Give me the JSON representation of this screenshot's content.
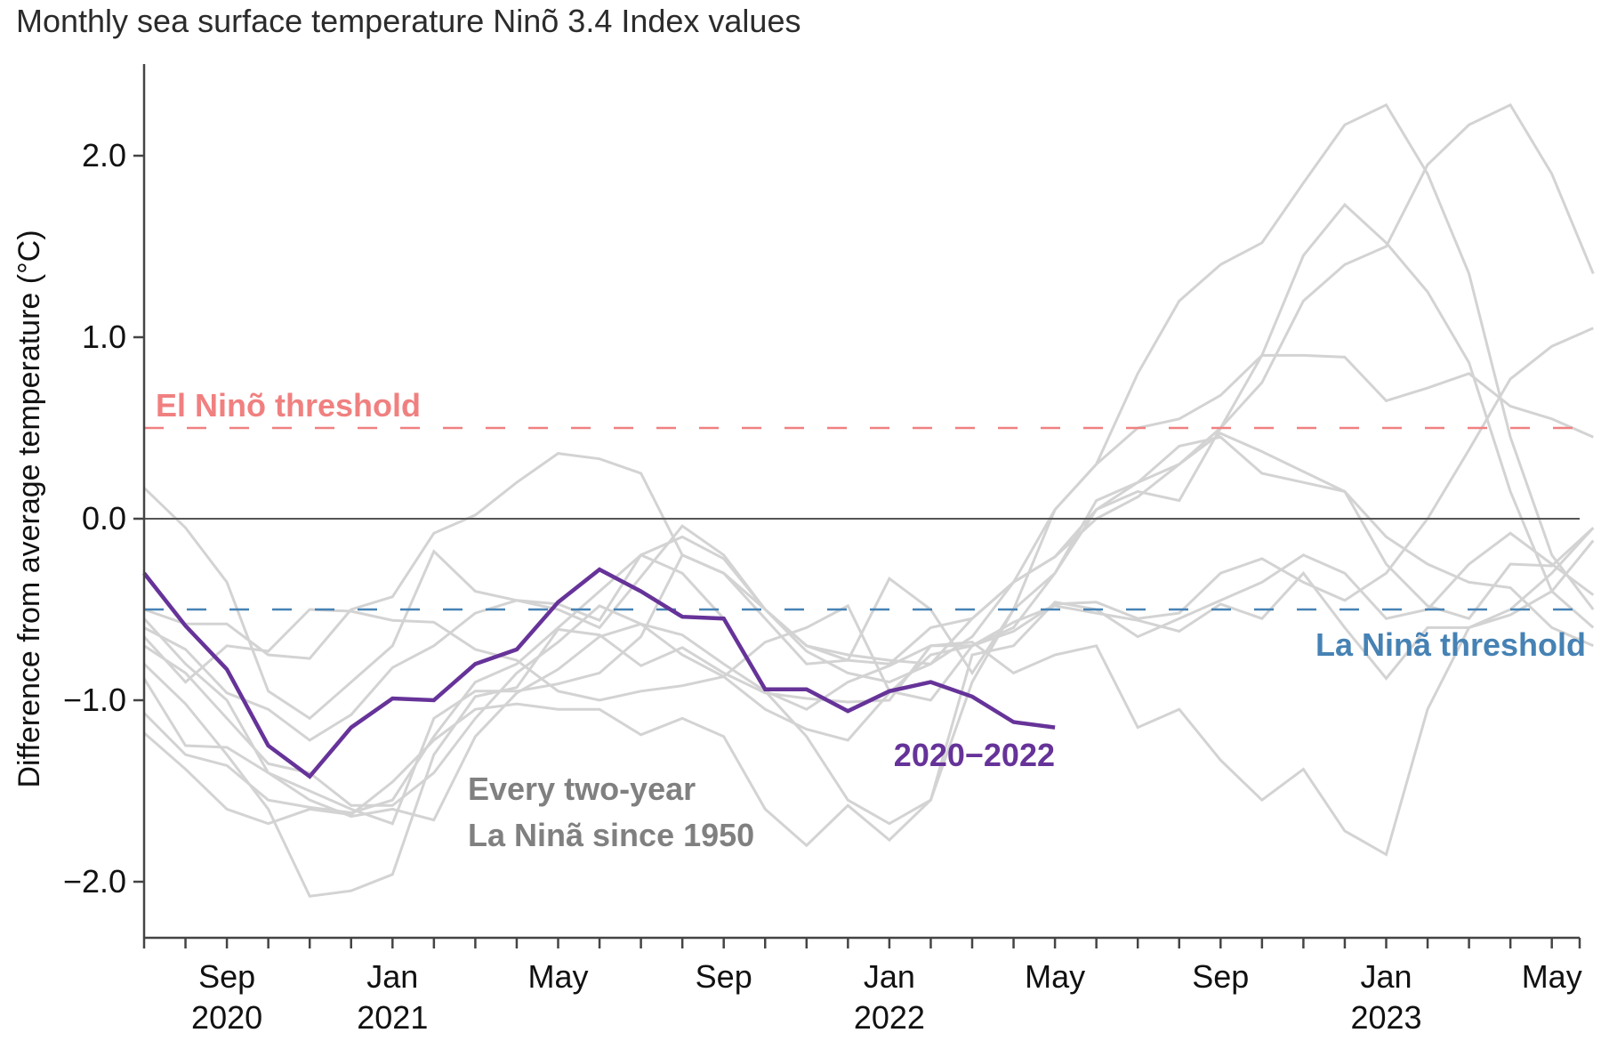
{
  "chart_data": {
    "type": "line",
    "title": "Monthly sea surface temperature Ninõ 3.4 Index values",
    "xlabel": "",
    "ylabel": "Difference from average temperature (°C)",
    "ylim": [
      -2.3,
      2.5
    ],
    "yticks": [
      2.0,
      1.0,
      0.0,
      -1.0,
      -2.0
    ],
    "ytick_labels": [
      "2.0",
      "1.0",
      "0.0",
      "−1.0",
      "−2.0"
    ],
    "x_months": [
      "Jul 2020",
      "Aug 2020",
      "Sep 2020",
      "Oct 2020",
      "Nov 2020",
      "Dec 2020",
      "Jan 2021",
      "Feb 2021",
      "Mar 2021",
      "Apr 2021",
      "May 2021",
      "Jun 2021",
      "Jul 2021",
      "Aug 2021",
      "Sep 2021",
      "Oct 2021",
      "Nov 2021",
      "Dec 2021",
      "Jan 2022",
      "Feb 2022",
      "Mar 2022",
      "Apr 2022",
      "May 2022",
      "Jun 2022",
      "Jul 2022",
      "Aug 2022",
      "Sep 2022",
      "Oct 2022",
      "Nov 2022",
      "Dec 2022",
      "Jan 2023",
      "Feb 2023",
      "Mar 2023",
      "Apr 2023",
      "May 2023",
      "Jun 2023"
    ],
    "xtick_labels": [
      {
        "month_index": 2,
        "line1": "Sep",
        "line2": "2020"
      },
      {
        "month_index": 6,
        "line1": "Jan",
        "line2": "2021"
      },
      {
        "month_index": 10,
        "line1": "May",
        "line2": ""
      },
      {
        "month_index": 14,
        "line1": "Sep",
        "line2": ""
      },
      {
        "month_index": 18,
        "line1": "Jan",
        "line2": "2022"
      },
      {
        "month_index": 22,
        "line1": "May",
        "line2": ""
      },
      {
        "month_index": 26,
        "line1": "Sep",
        "line2": ""
      },
      {
        "month_index": 30,
        "line1": "Jan",
        "line2": "2023"
      },
      {
        "month_index": 34,
        "line1": "May",
        "line2": ""
      }
    ],
    "thresholds": [
      {
        "name": "El Ninõ threshold",
        "value": 0.5,
        "color": "#f08080"
      },
      {
        "name": "La Ninã threshold",
        "value": -0.5,
        "color": "#4682b4"
      }
    ],
    "zero_line": 0.0,
    "highlight_series": {
      "name": "2020−2022",
      "color": "#663399",
      "values": [
        -0.3,
        -0.59,
        -0.83,
        -1.25,
        -1.42,
        -1.15,
        -0.99,
        -1.0,
        -0.8,
        -0.72,
        -0.46,
        -0.28,
        -0.4,
        -0.54,
        -0.55,
        -0.94,
        -0.94,
        -1.06,
        -0.95,
        -0.9,
        -0.98,
        -1.12,
        -1.15
      ]
    },
    "background_series": {
      "name": "Every two-year La Ninã since 1950",
      "color": "#d3d3d3",
      "series": [
        [
          0.17,
          -0.05,
          -0.35,
          -0.95,
          -1.1,
          -0.9,
          -0.7,
          -0.18,
          -0.4,
          -0.45,
          -0.47,
          -0.56,
          -0.2,
          -0.3,
          -0.55,
          -0.95,
          -1.2,
          -1.55,
          -1.68,
          -1.55,
          -0.75,
          -0.7,
          -0.46,
          -0.5,
          -0.65,
          -0.55,
          -0.45,
          -0.35,
          -0.2,
          -0.3,
          -0.55,
          -0.5,
          -0.25,
          -0.08,
          -0.25,
          -0.42
        ],
        [
          -0.5,
          -0.58,
          -0.58,
          -0.75,
          -0.77,
          -0.5,
          -0.43,
          -0.08,
          0.02,
          0.2,
          0.36,
          0.33,
          0.25,
          -0.2,
          -0.3,
          -0.55,
          -0.8,
          -0.78,
          -0.33,
          -0.5,
          -0.85,
          -0.5,
          -0.3,
          0.1,
          0.2,
          0.3,
          0.47,
          0.37,
          0.26,
          0.15,
          -0.25,
          -0.48,
          -0.55,
          -0.25,
          -0.26,
          -0.05
        ],
        [
          -0.6,
          -0.72,
          -0.96,
          -1.05,
          -1.22,
          -1.08,
          -0.82,
          -0.7,
          -0.52,
          -0.45,
          -0.5,
          -0.6,
          -0.32,
          -0.04,
          -0.2,
          -0.5,
          -0.7,
          -0.78,
          -0.8,
          -0.6,
          -0.55,
          -0.35,
          0.05,
          0.3,
          0.5,
          0.55,
          0.68,
          0.9,
          0.9,
          0.89,
          0.65,
          0.72,
          0.8,
          0.62,
          0.55,
          0.45
        ],
        [
          -0.65,
          -0.9,
          -0.7,
          -0.73,
          -0.5,
          -0.51,
          -0.56,
          -0.57,
          -0.72,
          -0.78,
          -0.95,
          -1.0,
          -0.95,
          -0.92,
          -0.87,
          -0.68,
          -0.6,
          -0.48,
          -0.95,
          -1.0,
          -0.7,
          -0.6,
          -0.3,
          0.05,
          0.15,
          0.1,
          0.5,
          0.9,
          1.45,
          1.73,
          1.52,
          1.25,
          0.86,
          0.15,
          -0.4,
          -0.6
        ],
        [
          -0.88,
          -1.25,
          -1.26,
          -1.4,
          -1.5,
          -1.6,
          -1.68,
          -1.1,
          -0.95,
          -0.95,
          -0.91,
          -0.85,
          -0.65,
          -0.2,
          -0.3,
          -0.5,
          -0.7,
          -0.75,
          -0.78,
          -0.8,
          -0.55,
          -0.35,
          -0.21,
          0.05,
          0.2,
          0.4,
          0.45,
          0.25,
          0.2,
          0.15,
          -0.1,
          -0.25,
          -0.35,
          -0.38,
          -0.6,
          -0.7
        ],
        [
          -1.07,
          -1.3,
          -1.36,
          -1.55,
          -1.59,
          -1.62,
          -1.55,
          -1.2,
          -0.9,
          -0.8,
          -0.6,
          -0.4,
          -0.2,
          -0.1,
          -0.22,
          -0.5,
          -0.73,
          -0.85,
          -0.9,
          -0.8,
          -0.65,
          -0.35,
          -0.21,
          0.0,
          0.12,
          0.3,
          0.5,
          0.75,
          1.2,
          1.4,
          1.5,
          1.95,
          2.17,
          2.28,
          1.9,
          1.35
        ],
        [
          -1.18,
          -1.38,
          -1.6,
          -1.68,
          -1.6,
          -1.63,
          -1.45,
          -1.22,
          -1.05,
          -1.02,
          -1.05,
          -1.05,
          -1.19,
          -1.1,
          -1.2,
          -1.6,
          -1.8,
          -1.58,
          -1.77,
          -1.55,
          -0.9,
          -0.5,
          0.05,
          0.3,
          0.8,
          1.2,
          1.4,
          1.52,
          1.85,
          2.17,
          2.28,
          1.9,
          1.35,
          0.45,
          -0.2,
          -0.5
        ],
        [
          -0.55,
          -0.8,
          -1.0,
          -1.4,
          -1.55,
          -1.64,
          -1.6,
          -1.66,
          -1.2,
          -0.96,
          -0.83,
          -0.65,
          -0.58,
          -0.64,
          -0.8,
          -0.95,
          -1.05,
          -0.9,
          -0.81,
          -0.7,
          -0.7,
          -0.57,
          -0.48,
          -0.52,
          -0.56,
          -0.62,
          -0.47,
          -0.55,
          -0.3,
          -0.6,
          -0.88,
          -0.6,
          -0.6,
          -0.5,
          -0.3,
          -0.05
        ],
        [
          -0.7,
          -0.85,
          -1.1,
          -1.35,
          -1.4,
          -1.58,
          -1.58,
          -1.4,
          -1.1,
          -0.85,
          -0.68,
          -0.48,
          -0.58,
          -0.75,
          -0.87,
          -1.05,
          -1.16,
          -1.22,
          -0.96,
          -0.75,
          -0.7,
          -0.62,
          -0.47,
          -0.46,
          -0.55,
          -0.52,
          -0.3,
          -0.22,
          -0.35,
          -0.45,
          -0.3,
          0.0,
          0.38,
          0.77,
          0.95,
          1.05
        ],
        [
          -0.8,
          -1.02,
          -1.3,
          -1.6,
          -2.08,
          -2.05,
          -1.96,
          -1.3,
          -0.98,
          -0.93,
          -0.61,
          -0.64,
          -0.81,
          -0.71,
          -0.85,
          -0.96,
          -0.99,
          -1.01,
          -1.0,
          -0.7,
          -0.68,
          -0.85,
          -0.75,
          -0.7,
          -1.15,
          -1.05,
          -1.33,
          -1.55,
          -1.38,
          -1.72,
          -1.85,
          -1.05,
          -0.6,
          -0.53,
          -0.4,
          -0.12
        ]
      ]
    },
    "annotations": [
      {
        "id": "elnino",
        "text": "El Ninõ threshold"
      },
      {
        "id": "lanina",
        "text": "La Ninã threshold"
      },
      {
        "id": "series",
        "text": "2020−2022"
      },
      {
        "id": "gray1",
        "text": "Every two-year"
      },
      {
        "id": "gray2",
        "text": "La Ninã since 1950"
      }
    ],
    "grid": false,
    "legend": "none"
  }
}
